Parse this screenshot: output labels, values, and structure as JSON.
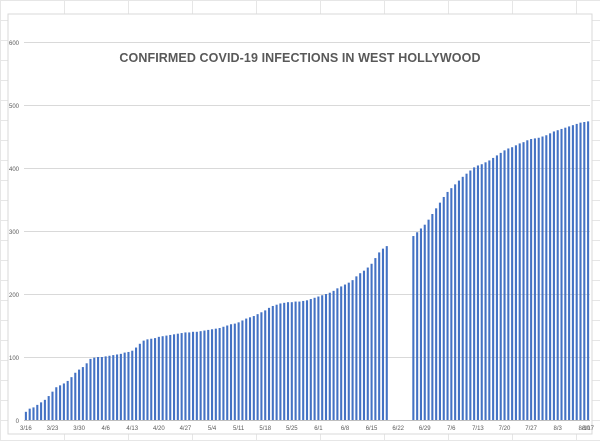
{
  "chart_data": {
    "type": "bar",
    "title": "CONFIRMED COVID-19 INFECTIONS IN WEST HOLLYWOOD",
    "xlabel": "",
    "ylabel": "",
    "ylim": [
      0,
      600
    ],
    "yticks": [
      0,
      100,
      200,
      300,
      400,
      500,
      600
    ],
    "grid": true,
    "legend": "none",
    "bar_color": "#4472c4",
    "start_date": "3/16",
    "tick_labels": [
      "3/16",
      "3/23",
      "3/30",
      "4/6",
      "4/13",
      "4/20",
      "4/27",
      "5/4",
      "5/11",
      "5/18",
      "5/25",
      "6/1",
      "6/8",
      "6/15",
      "6/22",
      "6/29",
      "7/6",
      "7/13",
      "7/20",
      "7/27",
      "8/3",
      "8/10",
      "8/17"
    ],
    "values": [
      13,
      18,
      20,
      24,
      28,
      32,
      38,
      45,
      52,
      55,
      58,
      62,
      68,
      75,
      80,
      84,
      90,
      97,
      99,
      100,
      100,
      101,
      102,
      103,
      104,
      105,
      107,
      108,
      110,
      115,
      121,
      126,
      128,
      129,
      130,
      132,
      133,
      134,
      135,
      136,
      137,
      138,
      139,
      139,
      140,
      140,
      141,
      142,
      143,
      144,
      145,
      146,
      148,
      150,
      152,
      153,
      155,
      158,
      161,
      163,
      165,
      168,
      171,
      174,
      178,
      181,
      183,
      185,
      186,
      187,
      187,
      188,
      188,
      189,
      190,
      192,
      194,
      196,
      198,
      200,
      202,
      205,
      209,
      212,
      215,
      218,
      222,
      228,
      233,
      237,
      242,
      248,
      257,
      266,
      272,
      276,
      0,
      0,
      0,
      0,
      0,
      0,
      292,
      298,
      304,
      310,
      318,
      327,
      336,
      345,
      354,
      362,
      368,
      374,
      380,
      386,
      391,
      396,
      401,
      404,
      406,
      409,
      412,
      416,
      420,
      424,
      428,
      431,
      433,
      436,
      439,
      441,
      444,
      446,
      447,
      448,
      450,
      452,
      455,
      458,
      460,
      462,
      464,
      466,
      468,
      470,
      472,
      473,
      474
    ]
  }
}
